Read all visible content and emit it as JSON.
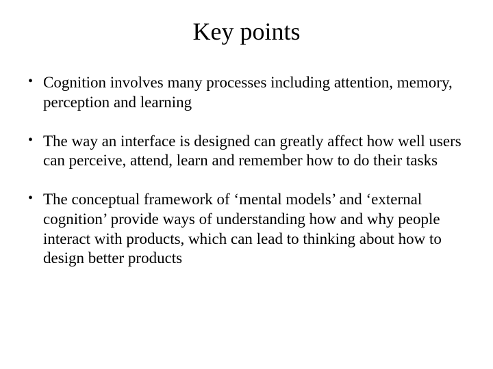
{
  "slide": {
    "title": "Key points",
    "bullets": [
      "Cognition involves many processes including attention, memory, perception and learning",
      "The way an interface is designed can greatly affect how well users can perceive, attend, learn and remember how to do their tasks",
      "The conceptual framework of ‘mental models’ and ‘external cognition’ provide ways of understanding how and why people interact with products, which can lead to thinking about how to design better products"
    ],
    "colors": {
      "background": "#ffffff",
      "text": "#000000"
    },
    "typography": {
      "title_fontsize": 36,
      "body_fontsize": 23,
      "font_family": "Times New Roman"
    }
  }
}
